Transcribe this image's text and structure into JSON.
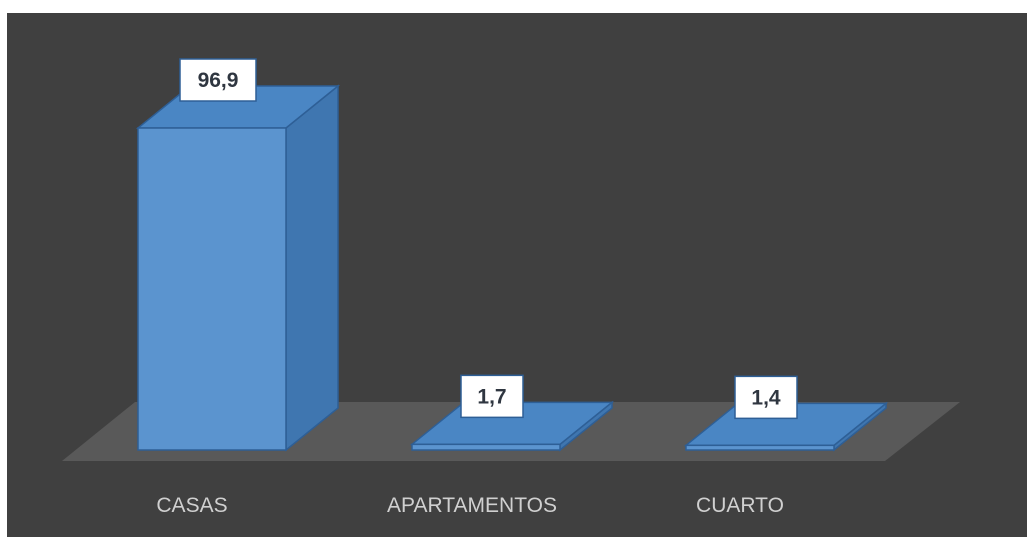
{
  "chart_data": {
    "type": "bar",
    "style": "3d-column",
    "categories": [
      "CASAS",
      "APARTAMENTOS",
      "CUARTO"
    ],
    "values": [
      96.9,
      1.7,
      1.4
    ],
    "data_labels": [
      "96,9",
      "1,7",
      "1,4"
    ],
    "title": "",
    "xlabel": "",
    "ylabel": "",
    "ylim": [
      0,
      100
    ],
    "grid": false,
    "legend": "none"
  },
  "colors": {
    "background": "#404040",
    "floor": "#595959",
    "bar_front": "#5b94cf",
    "bar_side": "#3f76b0",
    "bar_top": "#4a86c4",
    "bar_edge": "#2e5f96",
    "label_bg": "#ffffff",
    "label_text": "#2f3640",
    "category_text": "#d0d0d0"
  }
}
